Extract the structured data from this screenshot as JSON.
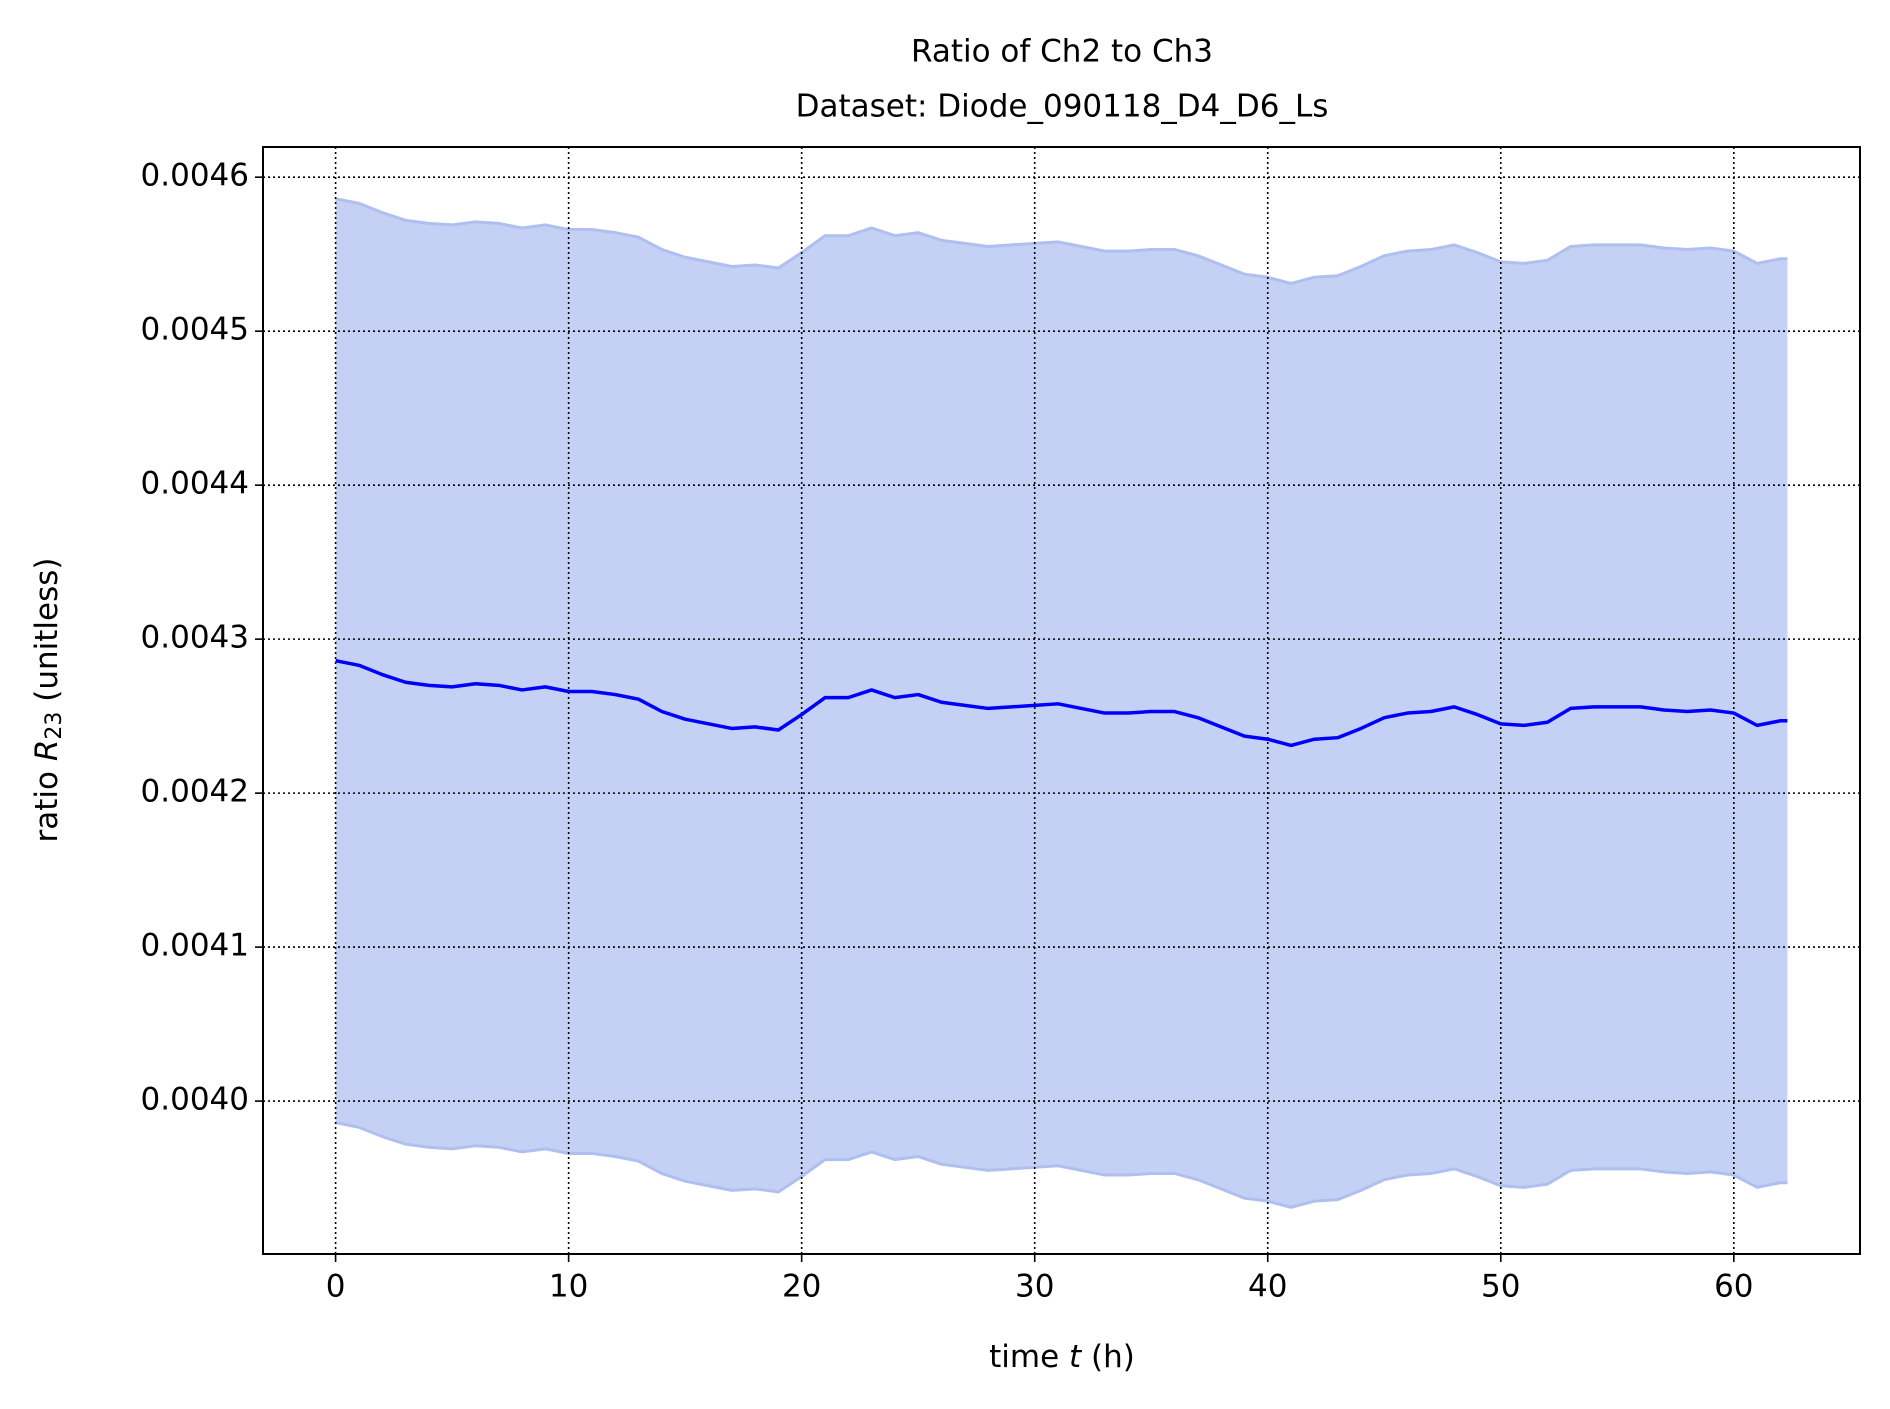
{
  "chart_data": {
    "type": "line",
    "title": "Ratio of Ch2 to Ch3",
    "subtitle": "Dataset: Diode_090118_D4_D6_Ls",
    "xlabel": {
      "prefix": "time ",
      "var": "t",
      "suffix": " (h)"
    },
    "ylabel": {
      "prefix": "ratio ",
      "var": "R",
      "sub": "23",
      "suffix": " (unitless)"
    },
    "x": [
      0,
      1,
      2,
      3,
      4,
      5,
      6,
      7,
      8,
      9,
      10,
      11,
      12,
      13,
      14,
      15,
      16,
      17,
      18,
      19,
      20,
      21,
      22,
      23,
      24,
      25,
      26,
      27,
      28,
      29,
      30,
      31,
      32,
      33,
      34,
      35,
      36,
      37,
      38,
      39,
      40,
      41,
      42,
      43,
      44,
      45,
      46,
      47,
      48,
      49,
      50,
      51,
      52,
      53,
      54,
      55,
      56,
      57,
      58,
      59,
      60,
      61,
      62,
      62.3
    ],
    "series": [
      {
        "color": "#0000ff",
        "band_color": "#c5d1f4",
        "band_edge_color": "#aebff0",
        "values": [
          0.004286,
          0.004283,
          0.004277,
          0.004272,
          0.00427,
          0.004269,
          0.004271,
          0.00427,
          0.004267,
          0.004269,
          0.004266,
          0.004266,
          0.004264,
          0.004261,
          0.004253,
          0.004248,
          0.004245,
          0.004242,
          0.004243,
          0.004241,
          0.004251,
          0.004262,
          0.004262,
          0.004267,
          0.004262,
          0.004264,
          0.004259,
          0.004257,
          0.004255,
          0.004256,
          0.004257,
          0.004258,
          0.004255,
          0.004252,
          0.004252,
          0.004253,
          0.004253,
          0.004249,
          0.004243,
          0.004237,
          0.004235,
          0.004231,
          0.004235,
          0.004236,
          0.004242,
          0.004249,
          0.004252,
          0.004253,
          0.004256,
          0.004251,
          0.004245,
          0.004244,
          0.004246,
          0.004255,
          0.004256,
          0.004256,
          0.004256,
          0.004254,
          0.004253,
          0.004254,
          0.004252,
          0.004244,
          0.004247,
          0.004247
        ],
        "upper": [
          0.004586,
          0.004583,
          0.004577,
          0.004572,
          0.00457,
          0.004569,
          0.004571,
          0.00457,
          0.004567,
          0.004569,
          0.004566,
          0.004566,
          0.004564,
          0.004561,
          0.004553,
          0.004548,
          0.004545,
          0.004542,
          0.004543,
          0.004541,
          0.004551,
          0.004562,
          0.004562,
          0.004567,
          0.004562,
          0.004564,
          0.004559,
          0.004557,
          0.004555,
          0.004556,
          0.004557,
          0.004558,
          0.004555,
          0.004552,
          0.004552,
          0.004553,
          0.004553,
          0.004549,
          0.004543,
          0.004537,
          0.004535,
          0.004531,
          0.004535,
          0.004536,
          0.004542,
          0.004549,
          0.004552,
          0.004553,
          0.004556,
          0.004551,
          0.004545,
          0.004544,
          0.004546,
          0.004555,
          0.004556,
          0.004556,
          0.004556,
          0.004554,
          0.004553,
          0.004554,
          0.004552,
          0.004544,
          0.004547,
          0.004547
        ],
        "lower": [
          0.003986,
          0.003983,
          0.003977,
          0.003972,
          0.00397,
          0.003969,
          0.003971,
          0.00397,
          0.003967,
          0.003969,
          0.003966,
          0.003966,
          0.003964,
          0.003961,
          0.003953,
          0.003948,
          0.003945,
          0.003942,
          0.003943,
          0.003941,
          0.003951,
          0.003962,
          0.003962,
          0.003967,
          0.003962,
          0.003964,
          0.003959,
          0.003957,
          0.003955,
          0.003956,
          0.003957,
          0.003958,
          0.003955,
          0.003952,
          0.003952,
          0.003953,
          0.003953,
          0.003949,
          0.003943,
          0.003937,
          0.003935,
          0.003931,
          0.003935,
          0.003936,
          0.003942,
          0.003949,
          0.003952,
          0.003953,
          0.003956,
          0.003951,
          0.003945,
          0.003944,
          0.003946,
          0.003955,
          0.003956,
          0.003956,
          0.003956,
          0.003954,
          0.003953,
          0.003954,
          0.003952,
          0.003944,
          0.003947,
          0.003947
        ]
      }
    ],
    "xlim": [
      -3.115,
      65.415
    ],
    "ylim": [
      0.0039007,
      0.0046196
    ],
    "xticks": [
      0,
      10,
      20,
      30,
      40,
      50,
      60
    ],
    "yticks": [
      {
        "value": 0.004,
        "label": "0.0040"
      },
      0.0041,
      0.0042,
      0.0043,
      0.0044,
      0.0045,
      0.0046
    ],
    "grid": true
  }
}
